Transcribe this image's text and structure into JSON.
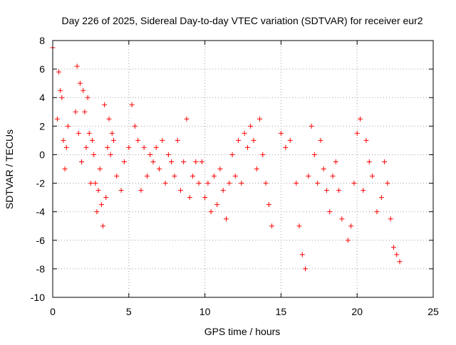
{
  "chart_data": {
    "type": "scatter",
    "title": "Day 226 of 2025, Sidereal Day-to-day VTEC variation (SDTVAR) for receiver eur2",
    "xlabel": "GPS time / hours",
    "ylabel": "SDTVAR / TECUs",
    "xlim": [
      0,
      25
    ],
    "ylim": [
      -10,
      8
    ],
    "xticks": [
      0,
      5,
      10,
      15,
      20,
      25
    ],
    "yticks": [
      -10,
      -8,
      -6,
      -4,
      -2,
      0,
      2,
      4,
      6,
      8
    ],
    "grid": true,
    "marker": "+",
    "series": [
      {
        "name": "SDTVAR",
        "color": "#ff0000",
        "x": [
          0.0,
          0.3,
          0.4,
          0.5,
          0.6,
          0.7,
          0.8,
          0.9,
          1.0,
          1.5,
          1.6,
          1.7,
          1.8,
          1.9,
          2.0,
          2.1,
          2.2,
          2.3,
          2.4,
          2.5,
          2.6,
          2.7,
          2.8,
          2.9,
          3.0,
          3.1,
          3.2,
          3.3,
          3.4,
          3.5,
          3.6,
          3.7,
          3.8,
          3.9,
          4.0,
          4.2,
          4.5,
          4.7,
          5.0,
          5.2,
          5.4,
          5.6,
          5.8,
          6.0,
          6.2,
          6.4,
          6.6,
          6.8,
          7.0,
          7.2,
          7.4,
          7.6,
          7.8,
          8.0,
          8.2,
          8.4,
          8.6,
          8.8,
          9.0,
          9.2,
          9.4,
          9.6,
          9.8,
          10.0,
          10.2,
          10.4,
          10.6,
          10.8,
          11.0,
          11.2,
          11.4,
          11.6,
          11.8,
          12.0,
          12.2,
          12.4,
          12.6,
          12.8,
          13.0,
          13.2,
          13.4,
          13.6,
          13.8,
          14.0,
          14.2,
          14.4,
          15.0,
          15.3,
          15.6,
          16.0,
          16.2,
          16.4,
          16.6,
          16.8,
          17.0,
          17.2,
          17.4,
          17.6,
          17.8,
          18.0,
          18.2,
          18.4,
          18.6,
          18.8,
          19.0,
          19.4,
          19.6,
          19.8,
          20.0,
          20.2,
          20.4,
          20.6,
          20.8,
          21.0,
          21.3,
          21.6,
          21.8,
          22.0,
          22.2,
          22.4,
          22.6,
          22.8
        ],
        "y": [
          7.5,
          2.5,
          5.8,
          4.5,
          4.0,
          1.0,
          -1.0,
          0.5,
          2.0,
          3.0,
          6.2,
          1.5,
          5.0,
          -0.5,
          4.5,
          3.0,
          0.5,
          4.0,
          1.5,
          -2.0,
          1.0,
          0.0,
          -2.0,
          -4.0,
          -2.5,
          -1.0,
          -3.5,
          -5.0,
          3.5,
          -3.0,
          0.5,
          2.5,
          0.0,
          1.5,
          1.0,
          -1.5,
          -2.5,
          -0.5,
          0.5,
          3.5,
          2.0,
          1.0,
          -2.5,
          0.5,
          -1.5,
          0.0,
          -0.5,
          0.5,
          -1.0,
          1.0,
          -2.0,
          0.0,
          -0.5,
          -1.5,
          1.0,
          -2.5,
          -0.5,
          2.5,
          -3.0,
          -1.5,
          -0.5,
          -2.0,
          -0.5,
          -3.0,
          -2.0,
          -4.0,
          -1.5,
          -3.5,
          -1.0,
          -2.5,
          -4.5,
          -2.0,
          0.0,
          -1.5,
          1.0,
          -2.0,
          1.5,
          0.5,
          2.0,
          1.0,
          -1.0,
          2.5,
          0.0,
          -2.0,
          -3.5,
          -5.0,
          1.5,
          0.5,
          1.0,
          -2.0,
          -5.0,
          -7.0,
          -8.0,
          -1.5,
          2.0,
          0.0,
          -2.0,
          1.0,
          -1.0,
          -2.5,
          -4.0,
          -1.5,
          -0.5,
          -2.5,
          -4.5,
          -6.0,
          -5.0,
          -2.0,
          1.5,
          2.5,
          -2.5,
          1.0,
          -0.5,
          -1.5,
          -4.0,
          -3.0,
          -0.5,
          -2.0,
          -4.5,
          -6.5,
          -7.0,
          -7.5
        ]
      }
    ]
  }
}
